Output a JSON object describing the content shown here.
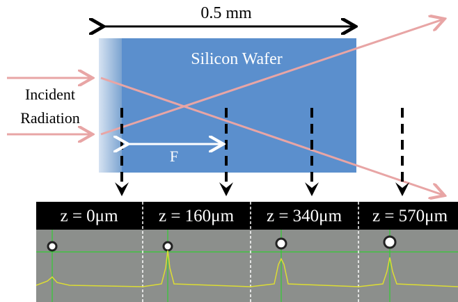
{
  "dimension_label": "0.5 mm",
  "wafer_label": "Silicon Wafer",
  "incident_label": [
    "Incident",
    "Radiation"
  ],
  "focus_label": "F",
  "panels": [
    {
      "label": "z = 0μm"
    },
    {
      "label": "z = 160μm"
    },
    {
      "label": "z = 340μm"
    },
    {
      "label": "z = 570μm"
    }
  ]
}
